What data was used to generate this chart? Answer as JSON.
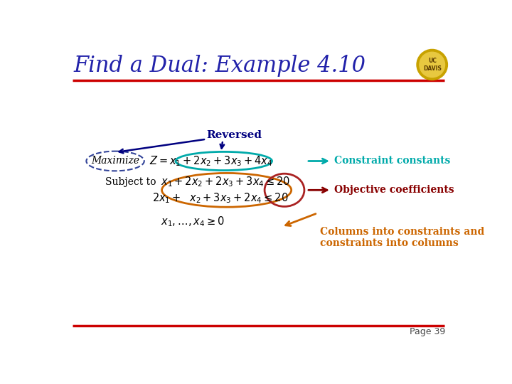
{
  "title": "Find a Dual: Example 4.10",
  "title_color": "#2222aa",
  "title_fontsize": 22,
  "bg_color": "#ffffff",
  "red_line_color": "#cc0000",
  "page_text": "Page 39",
  "label_reversed": "Reversed",
  "label_constraint": "Constraint constants",
  "label_objective": "Objective coefficients",
  "label_columns": "Columns into constraints and\nconstraints into columns",
  "arrow_constraint_color": "#00aaaa",
  "arrow_objective_color": "#880000",
  "arrow_columns_color": "#cc6600",
  "arrow_reversed_color": "#000080",
  "ellipse_maximize_color": "#334499",
  "ellipse_obj_color": "#00aaaa",
  "ellipse_constr_color": "#cc6600",
  "ellipse_rhs_color": "#aa2222",
  "math_color": "#000000",
  "label_color_reversed": "#000080",
  "subjectto_color": "#000000"
}
